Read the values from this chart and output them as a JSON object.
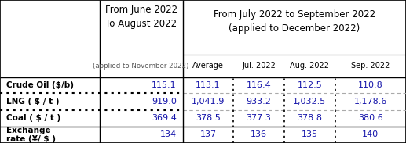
{
  "header_col1_line1": "From June 2022",
  "header_col1_line2": "To August 2022",
  "header_col1_line3": "(applied to November 2022)",
  "header_col2_line1": "From July 2022 to September 2022",
  "header_col2_line2": "(applied to December 2022)",
  "header_row2": [
    "Average",
    "Jul. 2022",
    "Aug. 2022",
    "Sep. 2022"
  ],
  "rows": [
    [
      "Crude Oil ($/b)",
      "115.1",
      "113.1",
      "116.4",
      "112.5",
      "110.8"
    ],
    [
      "LNG ( $ / t )",
      "919.0",
      "1,041.9",
      "933.2",
      "1,032.5",
      "1,178.6"
    ],
    [
      "Coal ( $ / t )",
      "369.4",
      "378.5",
      "377.3",
      "378.8",
      "380.6"
    ],
    [
      "Exchange\nrate (¥/ $ )",
      "134",
      "137",
      "136",
      "135",
      "140"
    ]
  ],
  "blue_color": "#1414aa",
  "label_color": "#000000",
  "header_color": "#000000",
  "small_header_color": "#555555",
  "dot_color_left": "#000000",
  "dot_color_right": "#aaaaaa",
  "vert_dot_color": "#000000"
}
